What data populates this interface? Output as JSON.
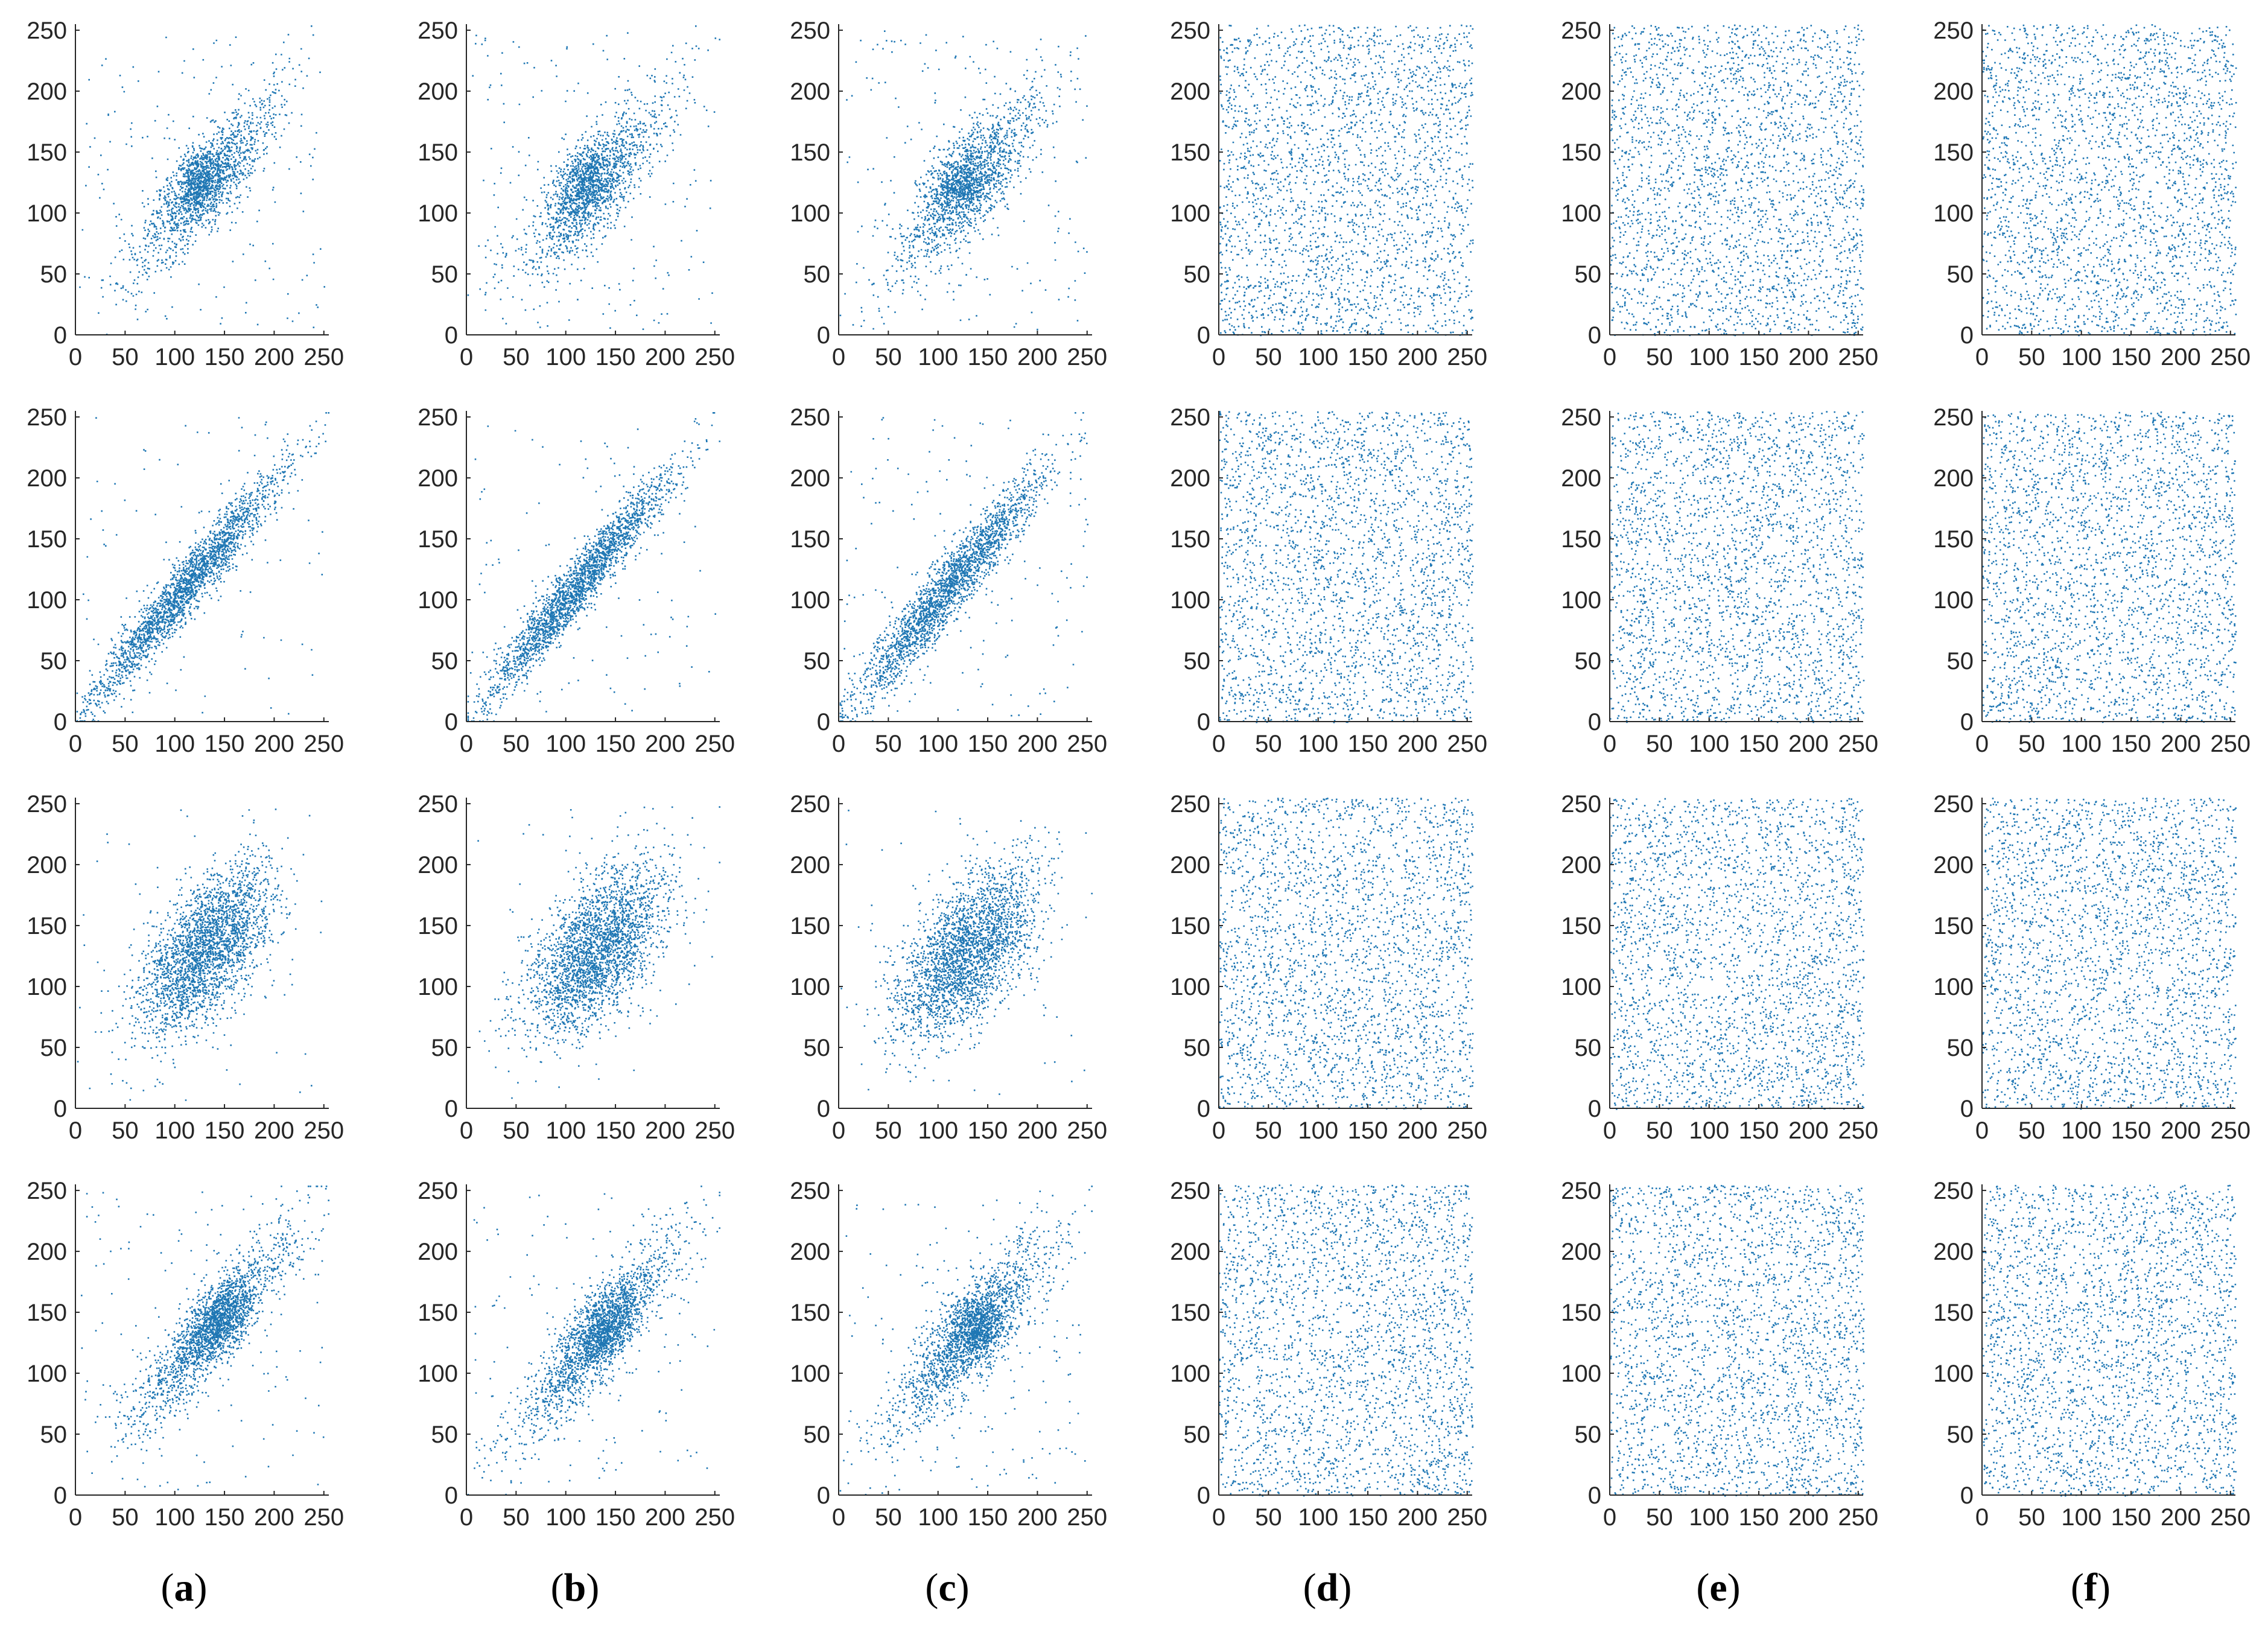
{
  "figure": {
    "marker_color": "#1f77b4",
    "axis_color": "#262626",
    "background": "#ffffff"
  },
  "columns": [
    {
      "id": "a",
      "open": "(",
      "letter": "a",
      "close": ")"
    },
    {
      "id": "b",
      "open": "(",
      "letter": "b",
      "close": ")"
    },
    {
      "id": "c",
      "open": "(",
      "letter": "c",
      "close": ")"
    },
    {
      "id": "d",
      "open": "(",
      "letter": "d",
      "close": ")"
    },
    {
      "id": "e",
      "open": "(",
      "letter": "e",
      "close": ")"
    },
    {
      "id": "f",
      "open": "(",
      "letter": "f",
      "close": ")"
    }
  ],
  "chart_data": {
    "type": "scatter",
    "title": "",
    "xlabel": "",
    "ylabel": "",
    "rows": 4,
    "cols": 6,
    "grid": false,
    "xlim": [
      0,
      255
    ],
    "ylim": [
      0,
      255
    ],
    "xticks": [
      0,
      50,
      100,
      150,
      200,
      250
    ],
    "yticks": [
      0,
      50,
      100,
      150,
      200,
      250
    ],
    "xtick_labels": [
      "0",
      "50",
      "100",
      "150",
      "200",
      "250"
    ],
    "ytick_labels": [
      "0",
      "50",
      "100",
      "150",
      "200",
      "250"
    ],
    "panels": [
      {
        "row": 1,
        "col": "a",
        "pattern": "correlated",
        "center": [
          130,
          125
        ],
        "spread_along": 0.2,
        "spread_across": 0.055,
        "cluster": [
          125,
          125,
          0.06,
          0.05
        ],
        "outliers": 0.1,
        "count": 2000
      },
      {
        "row": 1,
        "col": "b",
        "pattern": "correlated",
        "center": [
          130,
          125
        ],
        "spread_along": 0.2,
        "spread_across": 0.06,
        "cluster": [
          120,
          125,
          0.07,
          0.06
        ],
        "outliers": 0.1,
        "count": 2000
      },
      {
        "row": 1,
        "col": "c",
        "pattern": "correlated",
        "center": [
          130,
          125
        ],
        "spread_along": 0.2,
        "spread_across": 0.06,
        "cluster": [
          125,
          125,
          0.07,
          0.06
        ],
        "outliers": 0.12,
        "count": 2000
      },
      {
        "row": 1,
        "col": "d",
        "pattern": "uniform",
        "count": 2600
      },
      {
        "row": 1,
        "col": "e",
        "pattern": "uniform",
        "count": 2600
      },
      {
        "row": 1,
        "col": "f",
        "pattern": "uniform",
        "count": 2600
      },
      {
        "row": 2,
        "col": "a",
        "pattern": "correlated",
        "center": [
          110,
          110
        ],
        "spread_along": 0.26,
        "spread_across": 0.035,
        "outliers": 0.05,
        "count": 2400
      },
      {
        "row": 2,
        "col": "b",
        "pattern": "correlated",
        "center": [
          110,
          110
        ],
        "spread_along": 0.26,
        "spread_across": 0.035,
        "outliers": 0.05,
        "count": 2400
      },
      {
        "row": 2,
        "col": "c",
        "pattern": "correlated",
        "center": [
          110,
          110
        ],
        "spread_along": 0.26,
        "spread_across": 0.04,
        "outliers": 0.07,
        "count": 2400
      },
      {
        "row": 2,
        "col": "d",
        "pattern": "uniform",
        "count": 2600
      },
      {
        "row": 2,
        "col": "e",
        "pattern": "uniform",
        "count": 2600
      },
      {
        "row": 2,
        "col": "f",
        "pattern": "uniform",
        "count": 2600
      },
      {
        "row": 3,
        "col": "a",
        "pattern": "correlated",
        "center": [
          130,
          130
        ],
        "spread_along": 0.17,
        "spread_across": 0.085,
        "outliers": 0.02,
        "count": 2600
      },
      {
        "row": 3,
        "col": "b",
        "pattern": "correlated",
        "center": [
          130,
          130
        ],
        "spread_along": 0.17,
        "spread_across": 0.09,
        "outliers": 0.02,
        "count": 2600
      },
      {
        "row": 3,
        "col": "c",
        "pattern": "correlated",
        "center": [
          130,
          130
        ],
        "spread_along": 0.17,
        "spread_across": 0.09,
        "outliers": 0.02,
        "count": 2600
      },
      {
        "row": 3,
        "col": "d",
        "pattern": "uniform",
        "count": 2600
      },
      {
        "row": 3,
        "col": "e",
        "pattern": "uniform",
        "count": 2600
      },
      {
        "row": 3,
        "col": "f",
        "pattern": "uniform",
        "count": 2600
      },
      {
        "row": 4,
        "col": "a",
        "pattern": "correlated",
        "center": [
          135,
          135
        ],
        "spread_along": 0.22,
        "spread_across": 0.05,
        "cluster": [
          145,
          145,
          0.07,
          0.05
        ],
        "outliers": 0.06,
        "count": 2400
      },
      {
        "row": 4,
        "col": "b",
        "pattern": "correlated",
        "center": [
          130,
          130
        ],
        "spread_along": 0.22,
        "spread_across": 0.055,
        "cluster": [
          140,
          140,
          0.07,
          0.05
        ],
        "outliers": 0.06,
        "count": 2400
      },
      {
        "row": 4,
        "col": "c",
        "pattern": "correlated",
        "center": [
          130,
          130
        ],
        "spread_along": 0.22,
        "spread_across": 0.06,
        "cluster": [
          140,
          140,
          0.06,
          0.05
        ],
        "outliers": 0.08,
        "count": 2400
      },
      {
        "row": 4,
        "col": "d",
        "pattern": "uniform",
        "count": 2600
      },
      {
        "row": 4,
        "col": "e",
        "pattern": "uniform",
        "count": 2600
      },
      {
        "row": 4,
        "col": "f",
        "pattern": "uniform",
        "count": 2600
      }
    ]
  }
}
